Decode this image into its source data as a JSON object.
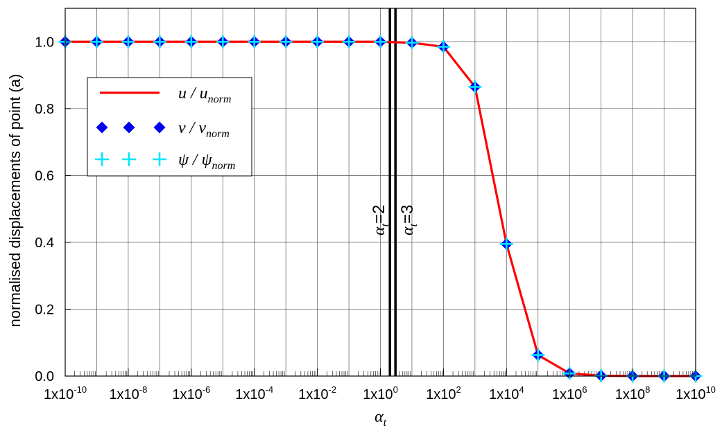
{
  "chart_data": {
    "type": "line",
    "x_scale": "log",
    "xlim": [
      1e-10,
      10000000000.0
    ],
    "ylim": [
      0.0,
      1.1
    ],
    "grid": true,
    "legend_position": "top-left",
    "xlabel": {
      "base": "α",
      "sub": "t"
    },
    "ylabel": "normalised displacements of point (a)",
    "x_ticks": [
      {
        "value": 1e-10,
        "mant": "1x10",
        "exp": "-10"
      },
      {
        "value": 1e-08,
        "mant": "1x10",
        "exp": "-8"
      },
      {
        "value": 1e-06,
        "mant": "1x10",
        "exp": "-6"
      },
      {
        "value": 0.0001,
        "mant": "1x10",
        "exp": "-4"
      },
      {
        "value": 0.01,
        "mant": "1x10",
        "exp": "-2"
      },
      {
        "value": 1.0,
        "mant": "1x10",
        "exp": "0"
      },
      {
        "value": 100.0,
        "mant": "1x10",
        "exp": "2"
      },
      {
        "value": 10000.0,
        "mant": "1x10",
        "exp": "4"
      },
      {
        "value": 1000000.0,
        "mant": "1x10",
        "exp": "6"
      },
      {
        "value": 100000000.0,
        "mant": "1x10",
        "exp": "8"
      },
      {
        "value": 10000000000.0,
        "mant": "1x10",
        "exp": "10"
      }
    ],
    "y_ticks": [
      {
        "value": 0.0,
        "label": "0.0"
      },
      {
        "value": 0.2,
        "label": "0.2"
      },
      {
        "value": 0.4,
        "label": "0.4"
      },
      {
        "value": 0.6,
        "label": "0.6"
      },
      {
        "value": 0.8,
        "label": "0.8"
      },
      {
        "value": 1.0,
        "label": "1.0"
      }
    ],
    "x": [
      1e-10,
      1e-09,
      1e-08,
      1e-07,
      1e-06,
      1e-05,
      0.0001,
      0.001,
      0.01,
      0.1,
      1.0,
      10.0,
      100.0,
      1000.0,
      10000.0,
      100000.0,
      1000000.0,
      10000000.0,
      100000000.0,
      1000000000.0,
      10000000000.0
    ],
    "series": [
      {
        "name": {
          "base": "u",
          "sep": " / ",
          "base2": "u",
          "sub": "norm"
        },
        "style": "line",
        "color": "#ff0000",
        "values": [
          1.0,
          1.0,
          1.0,
          1.0,
          1.0,
          1.0,
          1.0,
          1.0,
          1.0,
          1.0,
          1.0,
          0.997,
          0.985,
          0.865,
          0.395,
          0.063,
          0.008,
          0.001,
          0.0,
          0.0,
          0.0
        ]
      },
      {
        "name": {
          "base": "v",
          "sep": " / ",
          "base2": "v",
          "sub": "norm"
        },
        "style": "diamond",
        "color": "#0000ee",
        "values": [
          1.0,
          1.0,
          1.0,
          1.0,
          1.0,
          1.0,
          1.0,
          1.0,
          1.0,
          1.0,
          1.0,
          0.997,
          0.985,
          0.865,
          0.395,
          0.063,
          0.008,
          0.001,
          0.0,
          0.0,
          0.0
        ]
      },
      {
        "name": {
          "base": "ψ",
          "sep": " / ",
          "base2": "ψ",
          "sub": "norm"
        },
        "style": "plus",
        "color": "#00e5ff",
        "values": [
          1.0,
          1.0,
          1.0,
          1.0,
          1.0,
          1.0,
          1.0,
          1.0,
          1.0,
          1.0,
          1.0,
          0.997,
          0.985,
          0.865,
          0.395,
          0.063,
          0.008,
          0.001,
          0.0,
          0.0,
          0.0
        ]
      }
    ],
    "vertical_lines": [
      {
        "x": 2,
        "label_base": "α",
        "label_sub": "t",
        "label_rest": "=2",
        "label_side": "left"
      },
      {
        "x": 3,
        "label_base": "α",
        "label_sub": "t",
        "label_rest": "=3",
        "label_side": "right"
      }
    ]
  }
}
